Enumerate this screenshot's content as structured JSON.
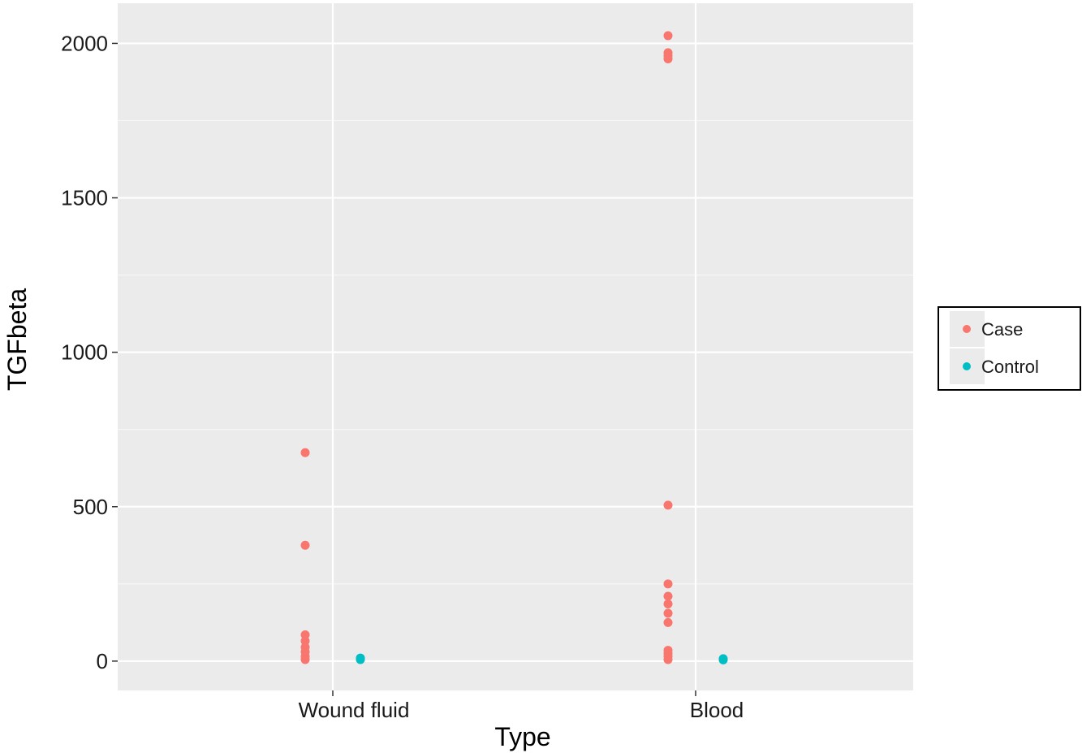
{
  "chart_data": {
    "type": "scatter",
    "xlabel": "Type",
    "ylabel": "TGFbeta",
    "categories": [
      "Wound fluid",
      "Blood"
    ],
    "yticks": [
      0,
      500,
      1000,
      1500,
      2000
    ],
    "ylim": [
      -95,
      2130
    ],
    "grid": true,
    "legend_position": "right",
    "series": [
      {
        "name": "Case",
        "color": "#F8766D",
        "points": [
          {
            "x": "Wound fluid",
            "y": 675
          },
          {
            "x": "Wound fluid",
            "y": 375
          },
          {
            "x": "Wound fluid",
            "y": 85
          },
          {
            "x": "Wound fluid",
            "y": 65
          },
          {
            "x": "Wound fluid",
            "y": 45
          },
          {
            "x": "Wound fluid",
            "y": 30
          },
          {
            "x": "Wound fluid",
            "y": 15
          },
          {
            "x": "Wound fluid",
            "y": 5
          },
          {
            "x": "Blood",
            "y": 2025
          },
          {
            "x": "Blood",
            "y": 1970
          },
          {
            "x": "Blood",
            "y": 1960
          },
          {
            "x": "Blood",
            "y": 1950
          },
          {
            "x": "Blood",
            "y": 505
          },
          {
            "x": "Blood",
            "y": 250
          },
          {
            "x": "Blood",
            "y": 210
          },
          {
            "x": "Blood",
            "y": 185
          },
          {
            "x": "Blood",
            "y": 155
          },
          {
            "x": "Blood",
            "y": 125
          },
          {
            "x": "Blood",
            "y": 35
          },
          {
            "x": "Blood",
            "y": 25
          },
          {
            "x": "Blood",
            "y": 15
          },
          {
            "x": "Blood",
            "y": 5
          }
        ]
      },
      {
        "name": "Control",
        "color": "#00BFC4",
        "points": [
          {
            "x": "Wound fluid",
            "y": 10
          },
          {
            "x": "Wound fluid",
            "y": 5
          },
          {
            "x": "Blood",
            "y": 8
          },
          {
            "x": "Blood",
            "y": 4
          }
        ]
      }
    ]
  }
}
